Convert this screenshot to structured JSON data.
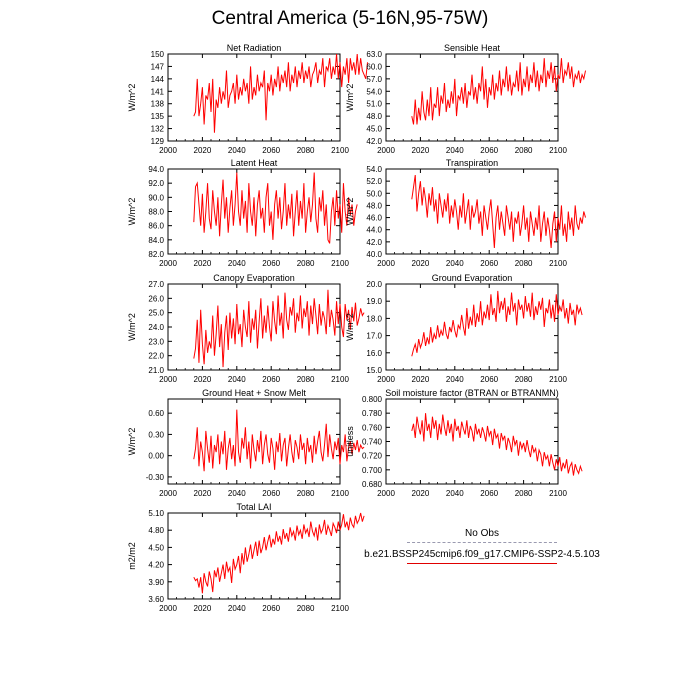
{
  "title": "Central America (5-16N,95-75W)",
  "colors": {
    "model": "#ff0000",
    "obs": "#9a9ab0",
    "axis": "#000000"
  },
  "legend": {
    "obs_label": "No Obs",
    "model_label": "b.e21.BSSP245cmip6.f09_g17.CMIP6-SSP2-4.5.103"
  },
  "chart_data": [
    {
      "type": "line",
      "title": "Net Radiation",
      "ylabel": "W/m^2",
      "xlim": [
        2000,
        2100
      ],
      "x_ticks": [
        "2000",
        "2020",
        "2040",
        "2060",
        "2080",
        "2100"
      ],
      "ylim": [
        129,
        150
      ],
      "y_ticks": [
        "129",
        "132",
        "135",
        "138",
        "141",
        "144",
        "147",
        "150"
      ],
      "x_start": 2015,
      "values": [
        135,
        136,
        144,
        135,
        138,
        142,
        133,
        140,
        139,
        143,
        136,
        144,
        131,
        139,
        137,
        142,
        138,
        141,
        139,
        146,
        137,
        140,
        141,
        143,
        138,
        145,
        139,
        142,
        140,
        144,
        141,
        143,
        138,
        147,
        139,
        142,
        140,
        145,
        141,
        143,
        142,
        146,
        134,
        143,
        141,
        145,
        140,
        144,
        142,
        147,
        141,
        145,
        143,
        146,
        142,
        148,
        141,
        145,
        143,
        147,
        142,
        146,
        144,
        148,
        143,
        146,
        144,
        147,
        142,
        145,
        146,
        148,
        143,
        146,
        145,
        149,
        142,
        147,
        146,
        149,
        144,
        147,
        145,
        150,
        144,
        148,
        142,
        147,
        145,
        149,
        143,
        149,
        146,
        148,
        145,
        150,
        145,
        149,
        146,
        145,
        144,
        148
      ]
    },
    {
      "type": "line",
      "title": "Sensible Heat",
      "ylabel": "W/m^2",
      "xlim": [
        2000,
        2100
      ],
      "x_ticks": [
        "2000",
        "2020",
        "2040",
        "2060",
        "2080",
        "2100"
      ],
      "ylim": [
        42.0,
        63.0
      ],
      "y_ticks": [
        "42.0",
        "45.0",
        "48.0",
        "51.0",
        "54.0",
        "57.0",
        "60.0",
        "63.0"
      ],
      "x_start": 2015,
      "values": [
        48,
        46,
        52,
        46,
        50,
        47,
        54,
        49,
        47,
        52,
        48,
        55,
        47,
        51,
        50,
        55,
        48,
        53,
        51,
        56,
        49,
        52,
        50,
        54,
        51,
        57,
        48,
        53,
        52,
        55,
        51,
        56,
        50,
        54,
        53,
        58,
        52,
        55,
        51,
        56,
        54,
        60,
        52,
        57,
        50,
        55,
        53,
        58,
        52,
        56,
        54,
        59,
        53,
        57,
        55,
        60,
        54,
        58,
        53,
        56,
        55,
        59,
        54,
        61,
        53,
        57,
        55,
        60,
        54,
        58,
        56,
        61,
        55,
        59,
        54,
        58,
        56,
        62,
        55,
        59,
        57,
        61,
        56,
        60,
        54,
        58,
        57,
        62,
        56,
        59,
        58,
        61,
        57,
        60,
        55,
        58,
        57,
        59,
        56,
        58,
        57,
        59
      ]
    },
    {
      "type": "line",
      "title": "Latent Heat",
      "ylabel": "W/m^2",
      "xlim": [
        2000,
        2100
      ],
      "x_ticks": [
        "2000",
        "2020",
        "2040",
        "2060",
        "2080",
        "2100"
      ],
      "ylim": [
        82.0,
        94.0
      ],
      "y_ticks": [
        "82.0",
        "84.0",
        "86.0",
        "88.0",
        "90.0",
        "92.0",
        "94.0"
      ],
      "x_start": 2015,
      "values": [
        86.5,
        91.5,
        92,
        89,
        86,
        90.5,
        85,
        88,
        92,
        87,
        85.5,
        91,
        88,
        86,
        90,
        84.5,
        89,
        92.5,
        87,
        90,
        85,
        88.5,
        91,
        86,
        89,
        93.5,
        88,
        86,
        91,
        87,
        89.5,
        85,
        92,
        88,
        86,
        90,
        84.5,
        89,
        91,
        87,
        88.5,
        85,
        90,
        92,
        86,
        88,
        84,
        89,
        91,
        87,
        90,
        85.5,
        88,
        92,
        86,
        89,
        87,
        90.5,
        84.5,
        88,
        91,
        86,
        89.5,
        87,
        92,
        85,
        88,
        90,
        86.5,
        89,
        93.5,
        87,
        85,
        90,
        88,
        91,
        86,
        89,
        84,
        83.5,
        88,
        90,
        86,
        91,
        87,
        89,
        85,
        92,
        88,
        86,
        90,
        87.5,
        89,
        86,
        88,
        89
      ]
    },
    {
      "type": "line",
      "title": "Transpiration",
      "ylabel": "W/m^2",
      "xlim": [
        2000,
        2100
      ],
      "x_ticks": [
        "2000",
        "2020",
        "2040",
        "2060",
        "2080",
        "2100"
      ],
      "ylim": [
        40.0,
        54.0
      ],
      "y_ticks": [
        "40.0",
        "42.0",
        "44.0",
        "46.0",
        "48.0",
        "50.0",
        "52.0",
        "54.0"
      ],
      "x_start": 2015,
      "values": [
        49,
        51,
        53,
        47,
        50,
        52,
        48,
        51,
        49,
        46,
        50,
        48,
        51,
        47,
        49,
        45,
        50,
        48,
        46,
        49,
        47,
        50,
        45,
        48,
        46,
        49,
        47,
        44,
        48,
        46,
        50,
        45,
        47,
        49,
        44,
        48,
        46,
        47,
        49,
        45,
        47,
        43,
        48,
        46,
        44,
        47,
        49,
        45,
        41,
        46,
        48,
        44,
        47,
        45,
        43,
        48,
        46,
        44,
        47,
        42,
        46,
        45,
        47,
        43,
        45,
        48,
        44,
        46,
        42,
        47,
        45,
        43,
        46,
        44,
        48,
        42,
        45,
        47,
        43,
        46,
        44,
        41,
        45,
        47,
        42,
        46,
        44,
        48,
        43,
        45,
        42,
        47,
        44,
        46,
        43,
        48,
        45,
        44,
        46,
        45,
        47,
        46
      ]
    },
    {
      "type": "line",
      "title": "Canopy Evaporation",
      "ylabel": "W/m^2",
      "xlim": [
        2000,
        2100
      ],
      "x_ticks": [
        "2000",
        "2020",
        "2040",
        "2060",
        "2080",
        "2100"
      ],
      "ylim": [
        21.0,
        27.0
      ],
      "y_ticks": [
        "21.0",
        "22.0",
        "23.0",
        "24.0",
        "25.0",
        "26.0",
        "27.0"
      ],
      "x_start": 2015,
      "values": [
        21.8,
        22.5,
        24.5,
        21.5,
        25.2,
        22.8,
        21.4,
        23.8,
        22.2,
        23,
        22.5,
        24.8,
        22,
        23.5,
        25.5,
        22.6,
        24.2,
        21.2,
        23.6,
        24.8,
        22.4,
        25,
        23.2,
        24.6,
        22.8,
        25.6,
        23.5,
        24.2,
        22.6,
        25.2,
        24,
        23.3,
        25.8,
        22.9,
        24.6,
        23.8,
        25.2,
        22.5,
        24.4,
        26,
        23.2,
        24.8,
        23.6,
        25.5,
        24,
        23,
        25.8,
        24.4,
        23.5,
        26.2,
        24.1,
        25,
        23.2,
        26.4,
        24.5,
        23.8,
        25.4,
        24.8,
        26,
        23.6,
        25,
        24.4,
        26.2,
        23.9,
        25.3,
        24.7,
        25.8,
        23.4,
        25.5,
        24.2,
        26,
        24.8,
        23.5,
        25.6,
        24.1,
        25.1,
        24.6,
        23.5,
        26.6,
        24,
        25.2,
        24.5,
        23.4,
        25.8,
        24.2,
        25.6,
        24,
        23.3,
        25.6,
        24.5,
        25.2,
        23.8,
        25.4,
        24.4,
        25.7,
        24.1,
        24.6,
        25.3,
        24.8,
        25
      ]
    },
    {
      "type": "line",
      "title": "Ground Evaporation",
      "ylabel": "W/m^2",
      "xlim": [
        2000,
        2100
      ],
      "x_ticks": [
        "2000",
        "2020",
        "2040",
        "2060",
        "2080",
        "2100"
      ],
      "ylim": [
        15.0,
        20.0
      ],
      "y_ticks": [
        "15.0",
        "16.0",
        "17.0",
        "18.0",
        "19.0",
        "20.0"
      ],
      "x_start": 2015,
      "values": [
        15.8,
        16.2,
        16.5,
        16,
        16.8,
        16.3,
        16.6,
        17.2,
        16.4,
        16.9,
        16.5,
        17.5,
        16.6,
        17.1,
        16.8,
        17.6,
        16.9,
        17.3,
        17,
        17.8,
        17.1,
        16.8,
        17.5,
        17.2,
        17.9,
        17.3,
        16.9,
        17.6,
        17.4,
        18.2,
        17.5,
        17,
        18.6,
        17.4,
        18.1,
        17.6,
        18.8,
        17.5,
        18.3,
        17.8,
        19,
        17.6,
        18.4,
        18,
        18.8,
        17.9,
        19.4,
        18.2,
        18.6,
        17.8,
        19.6,
        18.3,
        19,
        18.5,
        19.2,
        17.8,
        18.7,
        18.2,
        19.5,
        18.4,
        18.9,
        17.6,
        19.1,
        18.5,
        18.8,
        18,
        19.3,
        18.4,
        18.9,
        18.1,
        19.5,
        17.9,
        18.7,
        18.2,
        19,
        18.5,
        19.2,
        17.5,
        18.6,
        18.3,
        19.1,
        18,
        18.8,
        17.8,
        19.4,
        18.2,
        18.7,
        18.4,
        19.1,
        18,
        18.6,
        17.7,
        18.9,
        18.2,
        18.5,
        17.6,
        18.8,
        18.3,
        18.6,
        18.2
      ]
    },
    {
      "type": "line",
      "title": "Ground Heat + Snow Melt",
      "ylabel": "W/m^2",
      "xlim": [
        2000,
        2100
      ],
      "x_ticks": [
        "2000",
        "2020",
        "2040",
        "2060",
        "2080",
        "2100"
      ],
      "ylim": [
        -0.4,
        0.8
      ],
      "y_ticks": [
        "-0.30",
        "0.00",
        "0.30",
        "0.60"
      ],
      "x_start": 2015,
      "values": [
        -0.05,
        0.1,
        0.4,
        -0.15,
        0.2,
        0.05,
        -0.22,
        0.35,
        0.1,
        -0.1,
        0.28,
        -0.18,
        0.15,
        0.05,
        0.3,
        -0.12,
        0.2,
        0.02,
        0.35,
        -0.2,
        0.1,
        0.25,
        -0.05,
        0.15,
        -0.15,
        0.65,
        0.05,
        -0.1,
        0.25,
        0.1,
        0.4,
        -0.05,
        0.2,
        -0.18,
        0.3,
        0.08,
        -0.08,
        0.22,
        0.05,
        0.35,
        -0.12,
        0.15,
        0.3,
        0.02,
        -0.1,
        0.25,
        0.1,
        -0.2,
        0.2,
        0.05,
        0.32,
        -0.08,
        0.15,
        0.25,
        -0.15,
        0.1,
        0.3,
        0.05,
        -0.1,
        0.22,
        0.12,
        -0.05,
        0.3,
        0.08,
        0.18,
        -0.12,
        0.25,
        0.05,
        0.15,
        -0.1,
        0.28,
        0.02,
        0.2,
        0.35,
        0.05,
        -0.08,
        0.15,
        0.45,
        -0.02,
        0.3,
        0.1,
        -0.05,
        0.2,
        0.08,
        0.25,
        -0.12,
        0.15,
        0.05,
        0.3,
        -0.08,
        0.12,
        0.2,
        0.02,
        0.18,
        0.08,
        0.22,
        0.05,
        0.15,
        0.1,
        0.12
      ]
    },
    {
      "type": "line",
      "title": "Soil moisture factor (BTRAN or BTRANMN)",
      "ylabel": "unitless",
      "xlim": [
        2000,
        2100
      ],
      "x_ticks": [
        "2000",
        "2020",
        "2040",
        "2060",
        "2080",
        "2100"
      ],
      "ylim": [
        0.68,
        0.8
      ],
      "y_ticks": [
        "0.680",
        "0.700",
        "0.720",
        "0.740",
        "0.760",
        "0.780",
        "0.800"
      ],
      "x_start": 2015,
      "values": [
        0.755,
        0.765,
        0.745,
        0.775,
        0.76,
        0.75,
        0.77,
        0.74,
        0.78,
        0.755,
        0.765,
        0.745,
        0.775,
        0.758,
        0.77,
        0.742,
        0.765,
        0.75,
        0.778,
        0.76,
        0.748,
        0.77,
        0.752,
        0.765,
        0.74,
        0.772,
        0.755,
        0.762,
        0.745,
        0.768,
        0.758,
        0.75,
        0.77,
        0.745,
        0.762,
        0.755,
        0.74,
        0.765,
        0.75,
        0.758,
        0.745,
        0.76,
        0.752,
        0.74,
        0.762,
        0.748,
        0.755,
        0.735,
        0.758,
        0.745,
        0.75,
        0.73,
        0.752,
        0.742,
        0.748,
        0.728,
        0.745,
        0.738,
        0.725,
        0.748,
        0.735,
        0.742,
        0.72,
        0.74,
        0.73,
        0.738,
        0.725,
        0.742,
        0.728,
        0.718,
        0.735,
        0.725,
        0.73,
        0.712,
        0.728,
        0.722,
        0.705,
        0.725,
        0.715,
        0.72,
        0.705,
        0.722,
        0.71,
        0.7,
        0.715,
        0.705,
        0.718,
        0.698,
        0.71,
        0.702,
        0.715,
        0.695,
        0.705,
        0.71,
        0.692,
        0.708,
        0.7,
        0.695,
        0.705,
        0.698
      ]
    },
    {
      "type": "line",
      "title": "Total LAI",
      "ylabel": "m2/m2",
      "xlim": [
        2000,
        2100
      ],
      "x_ticks": [
        "2000",
        "2020",
        "2040",
        "2060",
        "2080",
        "2100"
      ],
      "ylim": [
        3.6,
        5.1
      ],
      "y_ticks": [
        "3.60",
        "3.90",
        "4.20",
        "4.50",
        "4.80",
        "5.10"
      ],
      "x_start": 2015,
      "values": [
        3.98,
        3.92,
        3.95,
        3.8,
        3.98,
        3.7,
        4.05,
        3.9,
        3.82,
        4.08,
        3.95,
        3.72,
        4.1,
        3.98,
        4.15,
        3.9,
        4.05,
        4.2,
        3.95,
        4.25,
        4.08,
        4.15,
        3.88,
        4.3,
        4.12,
        4.2,
        4.35,
        4.05,
        4.4,
        4.2,
        4.5,
        4.25,
        4.38,
        4.55,
        4.3,
        4.45,
        4.6,
        4.35,
        4.62,
        4.4,
        4.5,
        4.68,
        4.45,
        4.6,
        4.72,
        4.5,
        4.65,
        4.55,
        4.78,
        4.6,
        4.7,
        4.55,
        4.82,
        4.65,
        4.75,
        4.6,
        4.85,
        4.7,
        4.78,
        4.62,
        4.88,
        4.72,
        4.8,
        4.65,
        4.9,
        4.75,
        4.82,
        4.68,
        4.95,
        4.78,
        4.7,
        4.85,
        4.62,
        4.9,
        4.75,
        4.82,
        4.98,
        4.72,
        4.88,
        4.8,
        4.7,
        4.92,
        4.85,
        4.75,
        4.95,
        4.8,
        4.9,
        5.08,
        4.85,
        4.95,
        4.8,
        5.02,
        4.9,
        4.85,
        5.05,
        4.92,
        4.98,
        5.1,
        4.95,
        5.05
      ]
    }
  ]
}
